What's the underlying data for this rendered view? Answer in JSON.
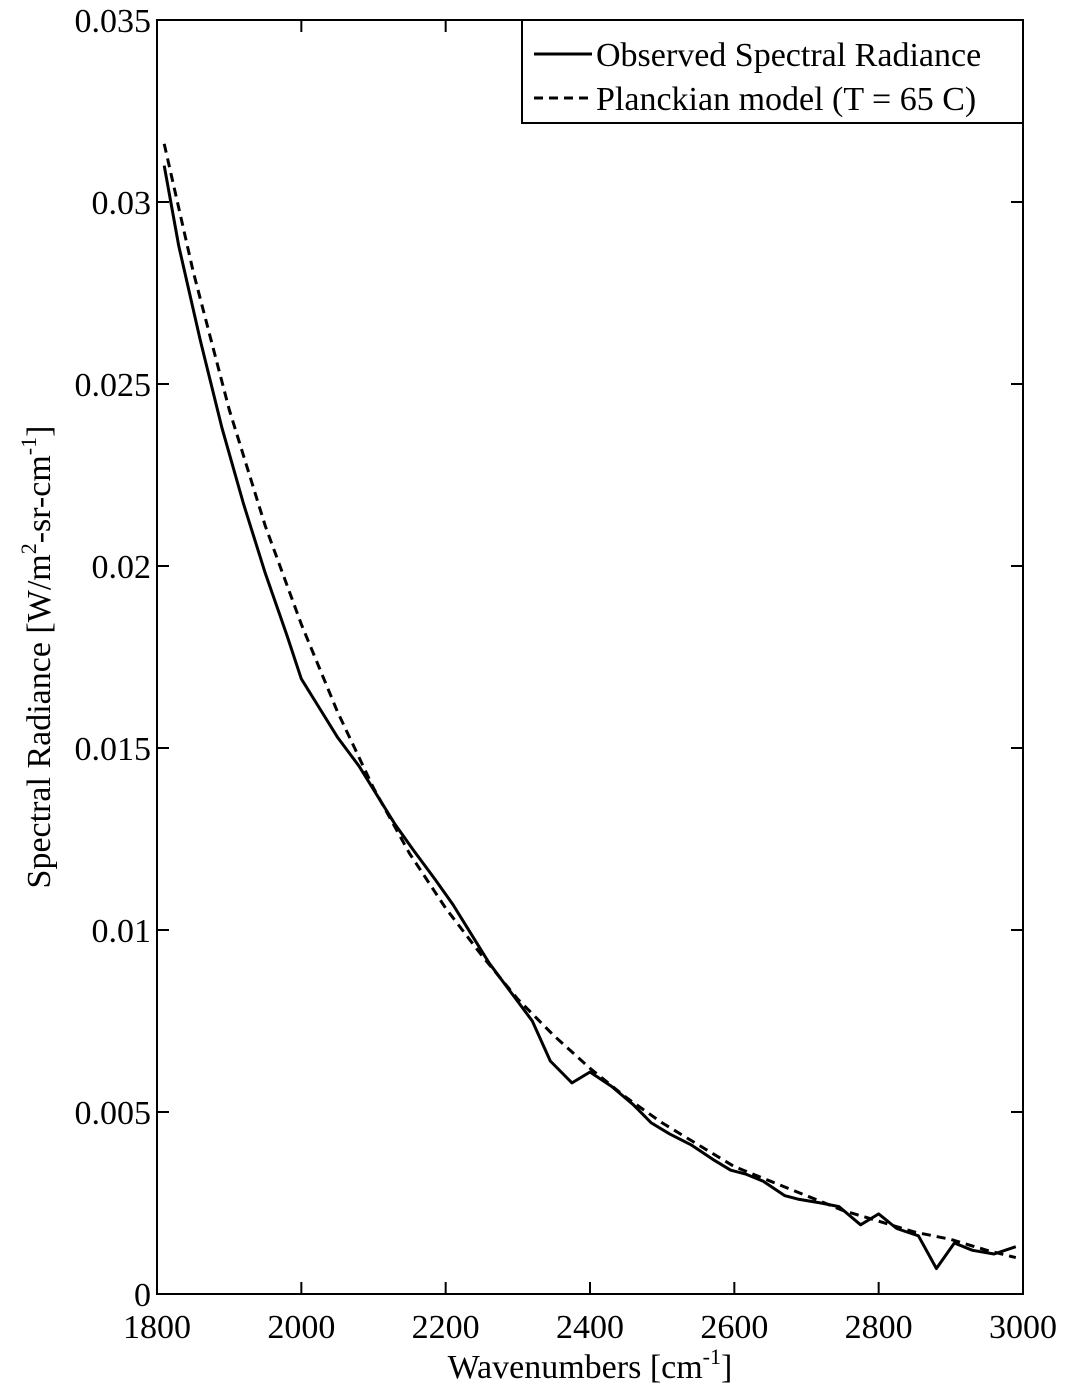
{
  "chart_data": {
    "type": "line",
    "title": "",
    "xlabel": {
      "prefix": "Wavenumbers [cm",
      "sup": "-1",
      "suffix": "]"
    },
    "ylabel": {
      "part1": "Spectral Radiance [W/m",
      "sup1": "2",
      "part2": "-sr-cm",
      "sup2": "-1",
      "part3": "]"
    },
    "xlim": [
      1800,
      3000
    ],
    "ylim": [
      0,
      0.035
    ],
    "xticks": [
      1800,
      2000,
      2200,
      2400,
      2600,
      2800,
      3000
    ],
    "xtick_labels": [
      "1800",
      "2000",
      "2200",
      "2400",
      "2600",
      "2800",
      "3000"
    ],
    "yticks": [
      0,
      0.005,
      0.01,
      0.015,
      0.02,
      0.025,
      0.03,
      0.035
    ],
    "ytick_labels": [
      "0",
      "0.005",
      "0.01",
      "0.015",
      "0.02",
      "0.025",
      "0.03",
      "0.035"
    ],
    "grid": false,
    "legend_position": "top-right",
    "series": [
      {
        "name": "Observed Spectral Radiance",
        "style": "solid",
        "color": "#000000",
        "x": [
          1810,
          1830,
          1860,
          1890,
          1920,
          1950,
          1980,
          2000,
          2025,
          2050,
          2080,
          2105,
          2130,
          2155,
          2185,
          2210,
          2235,
          2260,
          2290,
          2320,
          2345,
          2375,
          2400,
          2430,
          2460,
          2485,
          2510,
          2540,
          2570,
          2595,
          2615,
          2640,
          2670,
          2690,
          2720,
          2745,
          2775,
          2800,
          2825,
          2855,
          2880,
          2905,
          2930,
          2960,
          2990
        ],
        "y": [
          0.031,
          0.0288,
          0.0262,
          0.0238,
          0.0217,
          0.0198,
          0.0181,
          0.0169,
          0.0161,
          0.0153,
          0.0145,
          0.0137,
          0.0129,
          0.0122,
          0.0114,
          0.0107,
          0.0099,
          0.0091,
          0.0083,
          0.0075,
          0.0064,
          0.0058,
          0.0061,
          0.0057,
          0.0052,
          0.0047,
          0.0044,
          0.0041,
          0.0037,
          0.0034,
          0.0033,
          0.0031,
          0.0027,
          0.0026,
          0.0025,
          0.0024,
          0.0019,
          0.0022,
          0.0018,
          0.0016,
          0.0007,
          0.0014,
          0.0012,
          0.0011,
          0.0013
        ]
      },
      {
        "name": "Planckian model (T = 65 C)",
        "style": "dashed",
        "color": "#000000",
        "x": [
          1810,
          1850,
          1900,
          1950,
          2000,
          2050,
          2100,
          2150,
          2200,
          2250,
          2300,
          2350,
          2400,
          2450,
          2500,
          2550,
          2600,
          2650,
          2700,
          2750,
          2800,
          2850,
          2900,
          2950,
          2990
        ],
        "y": [
          0.0316,
          0.0281,
          0.0243,
          0.0211,
          0.0184,
          0.016,
          0.0139,
          0.0121,
          0.0106,
          0.0093,
          0.0081,
          0.0071,
          0.0062,
          0.0054,
          0.0047,
          0.0041,
          0.0035,
          0.0031,
          0.0027,
          0.0023,
          0.002,
          0.0017,
          0.0015,
          0.0012,
          0.001
        ]
      }
    ]
  }
}
